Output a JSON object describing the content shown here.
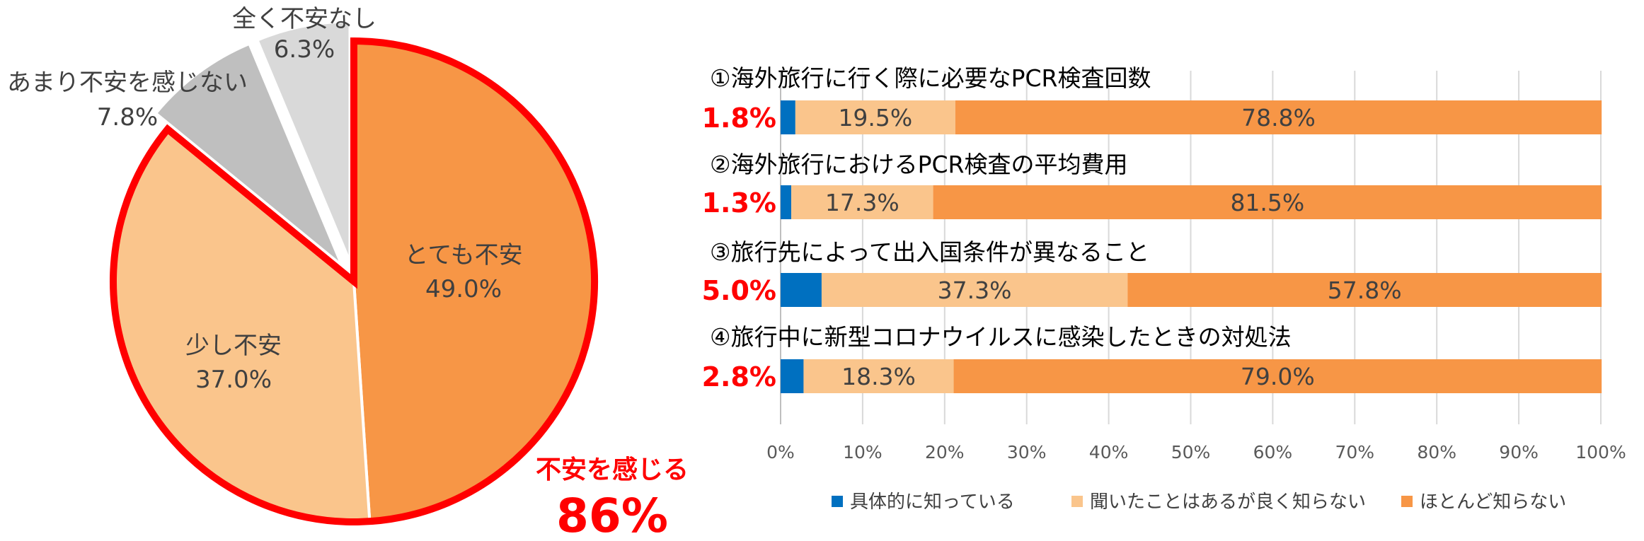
{
  "chart_data": [
    {
      "type": "pie",
      "categories": [
        "とても不安",
        "少し不安",
        "あまり不安を感じない",
        "全く不安なし"
      ],
      "values": [
        49.0,
        37.0,
        7.8,
        6.3
      ],
      "value_labels": [
        "49.0%",
        "37.0%",
        "7.8%",
        "6.3%"
      ],
      "colors": [
        "#F79646",
        "#FAC58C",
        "#BFBFBF",
        "#D9D9D9"
      ],
      "highlight": {
        "label": "不安を感じる",
        "value": "86%",
        "color": "#FF0000"
      }
    },
    {
      "type": "bar",
      "orientation": "horizontal",
      "stacked": true,
      "categories": [
        "①海外旅行に行く際に必要なPCR検査回数",
        "②海外旅行におけるPCR検査の平均費用",
        "③旅行先によって出入国条件が異なること",
        "④旅行中に新型コロナウイルスに感染したときの対処法"
      ],
      "series": [
        {
          "name": "具体的に知っている",
          "values": [
            1.8,
            1.3,
            5.0,
            2.8
          ],
          "labels": [
            "1.8%",
            "1.3%",
            "5.0%",
            "2.8%"
          ],
          "color": "#0070C0"
        },
        {
          "name": "聞いたことはあるが良く知らない",
          "values": [
            19.5,
            17.3,
            37.3,
            18.3
          ],
          "labels": [
            "19.5%",
            "17.3%",
            "37.3%",
            "18.3%"
          ],
          "color": "#FAC58C"
        },
        {
          "name": "ほとんど知らない",
          "values": [
            78.8,
            81.5,
            57.8,
            79.0
          ],
          "labels": [
            "78.8%",
            "81.5%",
            "57.8%",
            "79.0%"
          ],
          "color": "#F79646"
        }
      ],
      "xlim": [
        0,
        100
      ],
      "x_ticks": [
        "0%",
        "10%",
        "20%",
        "30%",
        "40%",
        "50%",
        "60%",
        "70%",
        "80%",
        "90%",
        "100%"
      ],
      "grid": true,
      "legend": "bottom",
      "first_series_label_color": "#FF0000"
    }
  ]
}
